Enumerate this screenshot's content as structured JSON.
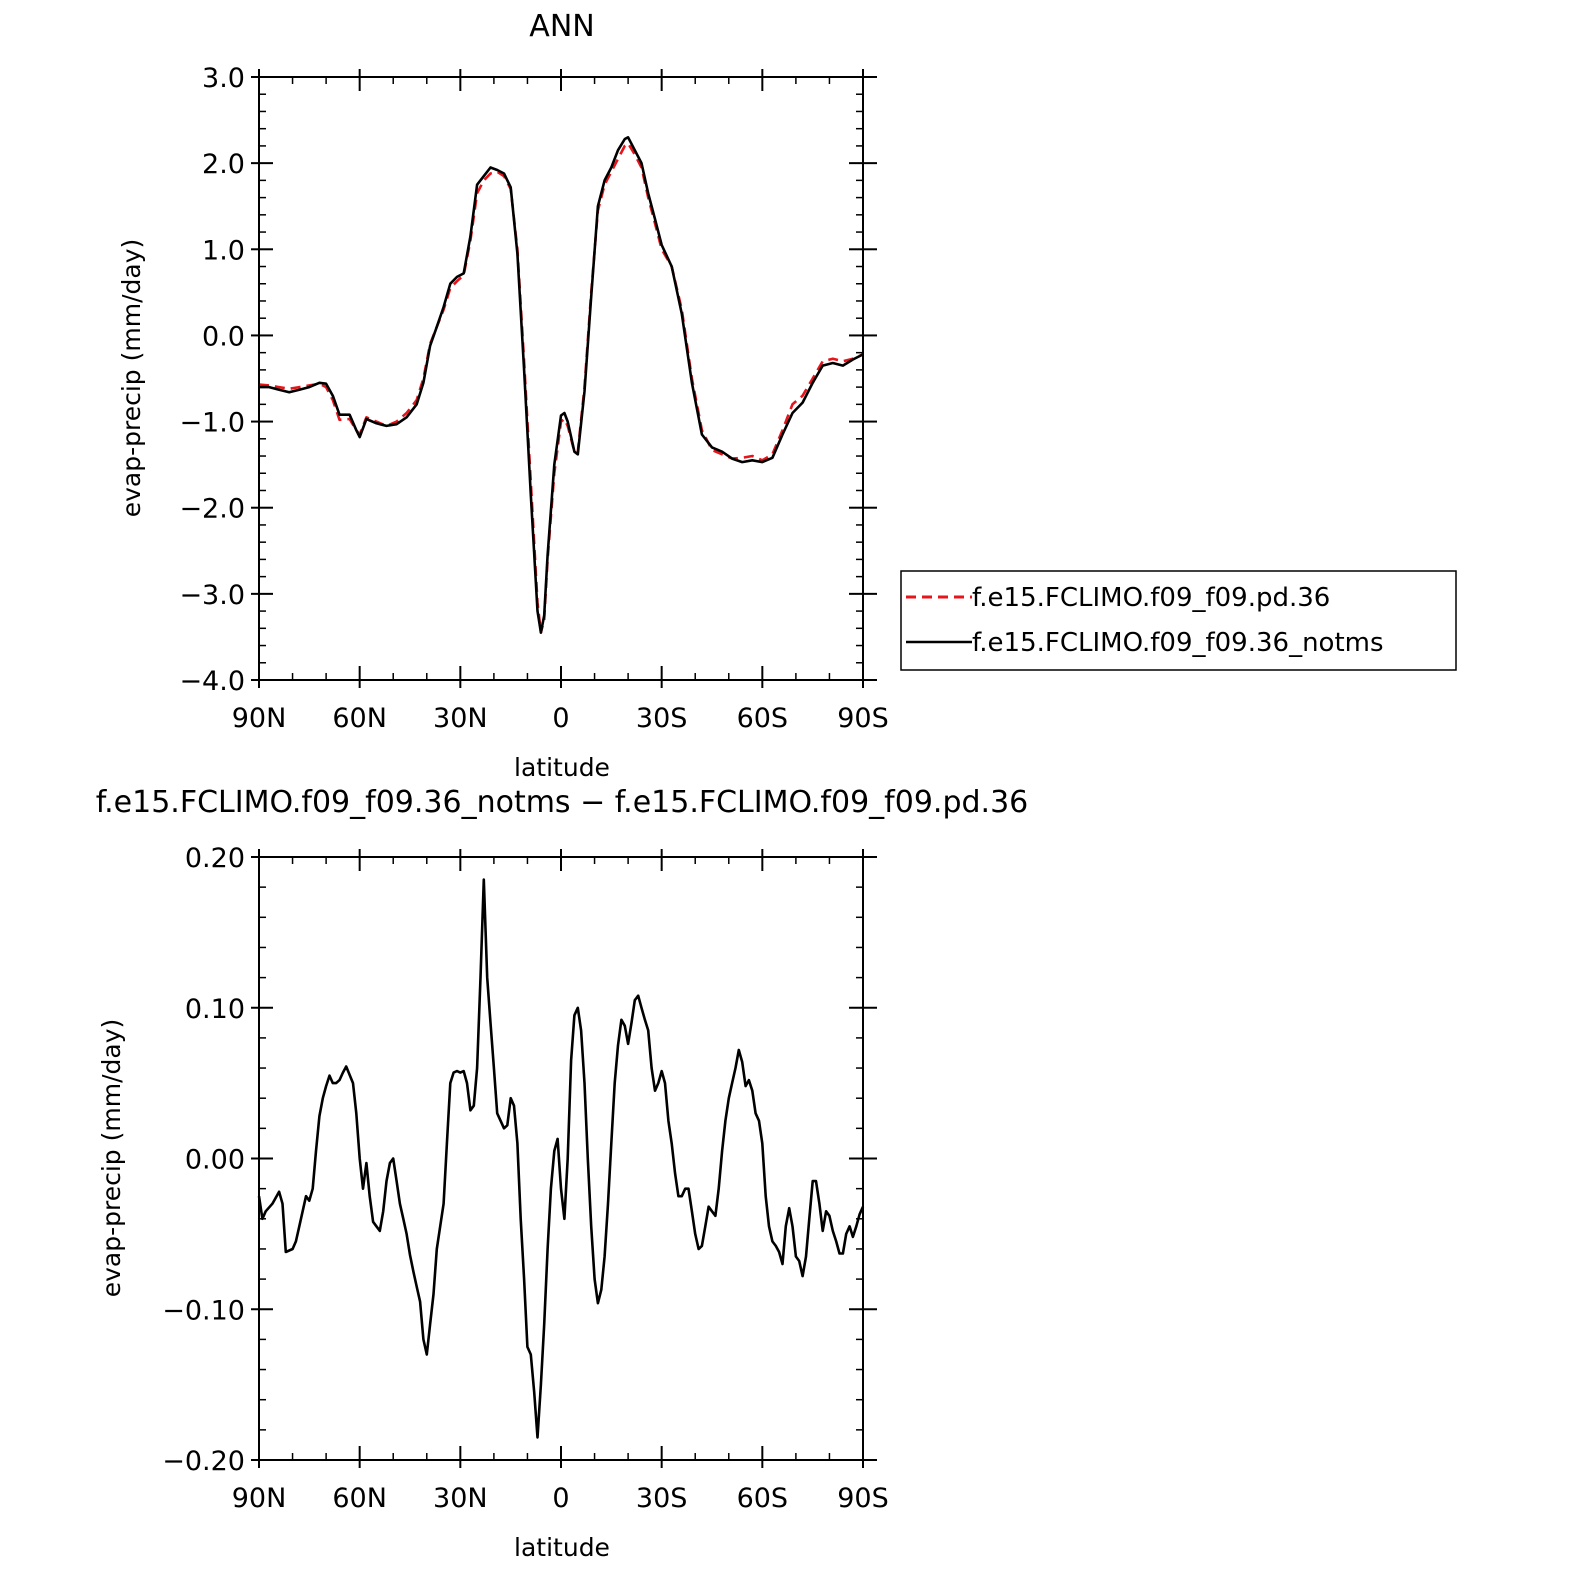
{
  "chart_data": [
    {
      "type": "line",
      "title": "ANN",
      "xlabel": "latitude",
      "ylabel": "evap-precip (mm/day)",
      "xlim": [
        -90,
        90
      ],
      "ylim": [
        -4.0,
        3.0
      ],
      "x_tick_values": [
        -90,
        -60,
        -30,
        0,
        30,
        60,
        90
      ],
      "x_tick_labels": [
        "90N",
        "60N",
        "30N",
        "0",
        "30S",
        "60S",
        "90S"
      ],
      "y_tick_values": [
        3.0,
        2.0,
        1.0,
        0.0,
        -1.0,
        -2.0,
        -3.0,
        -4.0
      ],
      "y_tick_labels": [
        "3.0",
        "2.0",
        "1.0",
        "0.0",
        "−1.0",
        "−2.0",
        "−3.0",
        "−4.0"
      ],
      "grid": false,
      "legend_position": "right",
      "series": [
        {
          "name": "f.e15.FCLIMO.f09_f09.pd.36",
          "color": "#e8141b",
          "dash": "dashed",
          "x": [
            -90,
            -87,
            -84,
            -81,
            -78,
            -75,
            -72,
            -70,
            -68,
            -66,
            -63,
            -61,
            -60,
            -58,
            -55,
            -52,
            -49,
            -46,
            -43,
            -41,
            -39,
            -37,
            -35,
            -33,
            -31,
            -29,
            -27,
            -25,
            -23,
            -21,
            -19,
            -17,
            -15,
            -13,
            -11,
            -9,
            -7,
            -6,
            -5,
            -4,
            -2,
            0,
            1,
            2,
            4,
            5,
            7,
            9,
            11,
            13,
            15,
            17,
            19,
            20,
            22,
            24,
            26,
            28,
            30,
            33,
            36,
            39,
            42,
            45,
            48,
            51,
            54,
            57,
            60,
            63,
            66,
            69,
            72,
            75,
            78,
            81,
            84,
            87,
            90
          ],
          "y": [
            -0.57,
            -0.58,
            -0.6,
            -0.62,
            -0.6,
            -0.58,
            -0.56,
            -0.6,
            -0.75,
            -0.98,
            -0.97,
            -1.1,
            -1.15,
            -0.95,
            -1.0,
            -1.05,
            -1.0,
            -0.9,
            -0.75,
            -0.5,
            -0.1,
            0.1,
            0.3,
            0.55,
            0.63,
            0.7,
            1.1,
            1.65,
            1.8,
            1.88,
            1.9,
            1.85,
            1.7,
            1.0,
            -0.3,
            -1.7,
            -3.1,
            -3.45,
            -3.3,
            -2.6,
            -1.6,
            -1.0,
            -0.97,
            -1.05,
            -1.35,
            -1.35,
            -0.6,
            0.5,
            1.45,
            1.75,
            1.9,
            2.05,
            2.2,
            2.23,
            2.1,
            1.95,
            1.6,
            1.3,
            1.0,
            0.8,
            0.3,
            -0.5,
            -1.1,
            -1.33,
            -1.38,
            -1.43,
            -1.42,
            -1.4,
            -1.45,
            -1.38,
            -1.1,
            -0.8,
            -0.7,
            -0.5,
            -0.3,
            -0.27,
            -0.3,
            -0.27,
            -0.22
          ]
        },
        {
          "name": "f.e15.FCLIMO.f09_f09.36_notms",
          "color": "#000000",
          "dash": "solid",
          "x": [
            -90,
            -87,
            -84,
            -81,
            -78,
            -75,
            -72,
            -70,
            -68,
            -66,
            -63,
            -61,
            -60,
            -58,
            -55,
            -52,
            -49,
            -46,
            -43,
            -41,
            -39,
            -37,
            -35,
            -33,
            -31,
            -29,
            -27,
            -25,
            -23,
            -21,
            -19,
            -17,
            -15,
            -13,
            -11,
            -9,
            -7,
            -6,
            -5,
            -4,
            -2,
            0,
            1,
            2,
            4,
            5,
            7,
            9,
            11,
            13,
            15,
            17,
            19,
            20,
            22,
            24,
            26,
            28,
            30,
            33,
            36,
            39,
            42,
            45,
            48,
            51,
            54,
            57,
            60,
            63,
            66,
            69,
            72,
            75,
            78,
            81,
            84,
            87,
            90
          ],
          "y": [
            -0.6,
            -0.6,
            -0.63,
            -0.66,
            -0.63,
            -0.6,
            -0.55,
            -0.56,
            -0.7,
            -0.92,
            -0.92,
            -1.1,
            -1.18,
            -0.97,
            -1.02,
            -1.05,
            -1.03,
            -0.95,
            -0.8,
            -0.55,
            -0.12,
            0.1,
            0.33,
            0.6,
            0.68,
            0.72,
            1.15,
            1.75,
            1.85,
            1.95,
            1.92,
            1.88,
            1.72,
            0.95,
            -0.4,
            -1.85,
            -3.2,
            -3.45,
            -3.25,
            -2.55,
            -1.5,
            -0.93,
            -0.9,
            -1.0,
            -1.35,
            -1.38,
            -0.65,
            0.45,
            1.5,
            1.8,
            1.95,
            2.15,
            2.28,
            2.3,
            2.15,
            2.0,
            1.65,
            1.35,
            1.05,
            0.8,
            0.25,
            -0.55,
            -1.15,
            -1.3,
            -1.35,
            -1.43,
            -1.47,
            -1.45,
            -1.47,
            -1.42,
            -1.15,
            -0.9,
            -0.78,
            -0.55,
            -0.35,
            -0.32,
            -0.35,
            -0.28,
            -0.22
          ]
        }
      ]
    },
    {
      "type": "line",
      "title": "f.e15.FCLIMO.f09_f09.36_notms − f.e15.FCLIMO.f09_f09.pd.36",
      "xlabel": "latitude",
      "ylabel": "evap-precip (mm/day)",
      "xlim": [
        -90,
        90
      ],
      "ylim": [
        -0.2,
        0.2
      ],
      "x_tick_values": [
        -90,
        -60,
        -30,
        0,
        30,
        60,
        90
      ],
      "x_tick_labels": [
        "90N",
        "60N",
        "30N",
        "0",
        "30S",
        "60S",
        "90S"
      ],
      "y_tick_values": [
        0.2,
        0.1,
        0.0,
        -0.1,
        -0.2
      ],
      "y_tick_labels": [
        "0.20",
        "0.10",
        "0.00",
        "−0.10",
        "−0.20"
      ],
      "grid": false,
      "series": [
        {
          "color": "#000000",
          "x": [
            -90,
            -89,
            -88,
            -86,
            -84,
            -83,
            -82,
            -80,
            -79,
            -78,
            -76,
            -75,
            -74,
            -73,
            -72,
            -71,
            -70,
            -69,
            -68,
            -67,
            -66,
            -65,
            -64,
            -62,
            -61,
            -60,
            -59,
            -58,
            -57,
            -56,
            -55,
            -54,
            -53,
            -52,
            -51,
            -50,
            -49,
            -48,
            -47,
            -46,
            -45,
            -44,
            -43,
            -42,
            -41,
            -40,
            -39,
            -38,
            -37,
            -36,
            -35,
            -34,
            -33,
            -32,
            -31,
            -30,
            -29,
            -28,
            -27,
            -26,
            -25,
            -24,
            -23,
            -22,
            -21,
            -20,
            -19,
            -18,
            -17,
            -16,
            -15,
            -14,
            -13,
            -12,
            -11,
            -10,
            -9,
            -8,
            -7,
            -6,
            -5,
            -4,
            -3,
            -2,
            -1,
            0,
            1,
            2,
            3,
            4,
            5,
            6,
            7,
            8,
            9,
            10,
            11,
            12,
            13,
            14,
            15,
            16,
            17,
            18,
            19,
            20,
            21,
            22,
            23,
            24,
            25,
            26,
            27,
            28,
            29,
            30,
            31,
            32,
            33,
            34,
            35,
            36,
            37,
            38,
            39,
            40,
            41,
            42,
            43,
            44,
            45,
            46,
            47,
            48,
            49,
            50,
            51,
            52,
            53,
            54,
            55,
            56,
            57,
            58,
            59,
            60,
            61,
            62,
            63,
            64,
            65,
            66,
            67,
            68,
            69,
            70,
            71,
            72,
            73,
            74,
            75,
            76,
            77,
            78,
            79,
            80,
            81,
            82,
            83,
            84,
            85,
            86,
            87,
            88,
            89,
            90
          ],
          "y": [
            -0.025,
            -0.04,
            -0.035,
            -0.03,
            -0.022,
            -0.03,
            -0.062,
            -0.06,
            -0.055,
            -0.045,
            -0.025,
            -0.028,
            -0.02,
            0.005,
            0.028,
            0.04,
            0.048,
            0.055,
            0.05,
            0.05,
            0.052,
            0.057,
            0.061,
            0.05,
            0.03,
            0.0,
            -0.02,
            -0.003,
            -0.025,
            -0.042,
            -0.045,
            -0.048,
            -0.035,
            -0.015,
            -0.003,
            0.0,
            -0.015,
            -0.03,
            -0.04,
            -0.05,
            -0.064,
            -0.075,
            -0.085,
            -0.095,
            -0.12,
            -0.13,
            -0.11,
            -0.09,
            -0.06,
            -0.045,
            -0.03,
            0.01,
            0.05,
            0.057,
            0.058,
            0.057,
            0.058,
            0.05,
            0.032,
            0.035,
            0.06,
            0.12,
            0.185,
            0.12,
            0.09,
            0.06,
            0.03,
            0.025,
            0.02,
            0.022,
            0.04,
            0.035,
            0.01,
            -0.04,
            -0.08,
            -0.125,
            -0.13,
            -0.155,
            -0.185,
            -0.15,
            -0.11,
            -0.06,
            -0.02,
            0.005,
            0.013,
            -0.02,
            -0.04,
            0.0,
            0.065,
            0.095,
            0.1,
            0.085,
            0.05,
            0.0,
            -0.045,
            -0.08,
            -0.096,
            -0.087,
            -0.065,
            -0.03,
            0.01,
            0.05,
            0.075,
            0.092,
            0.088,
            0.076,
            0.09,
            0.105,
            0.108,
            0.1,
            0.092,
            0.085,
            0.06,
            0.045,
            0.05,
            0.058,
            0.05,
            0.025,
            0.01,
            -0.01,
            -0.025,
            -0.025,
            -0.02,
            -0.02,
            -0.035,
            -0.05,
            -0.06,
            -0.058,
            -0.045,
            -0.032,
            -0.035,
            -0.038,
            -0.02,
            0.005,
            0.025,
            0.04,
            0.05,
            0.06,
            0.072,
            0.064,
            0.048,
            0.052,
            0.045,
            0.03,
            0.025,
            0.01,
            -0.025,
            -0.045,
            -0.055,
            -0.058,
            -0.062,
            -0.07,
            -0.045,
            -0.033,
            -0.045,
            -0.065,
            -0.068,
            -0.078,
            -0.065,
            -0.04,
            -0.015,
            -0.015,
            -0.03,
            -0.048,
            -0.035,
            -0.038,
            -0.048,
            -0.055,
            -0.063,
            -0.063,
            -0.05,
            -0.045,
            -0.052,
            -0.045,
            -0.037,
            -0.032
          ]
        }
      ]
    }
  ]
}
